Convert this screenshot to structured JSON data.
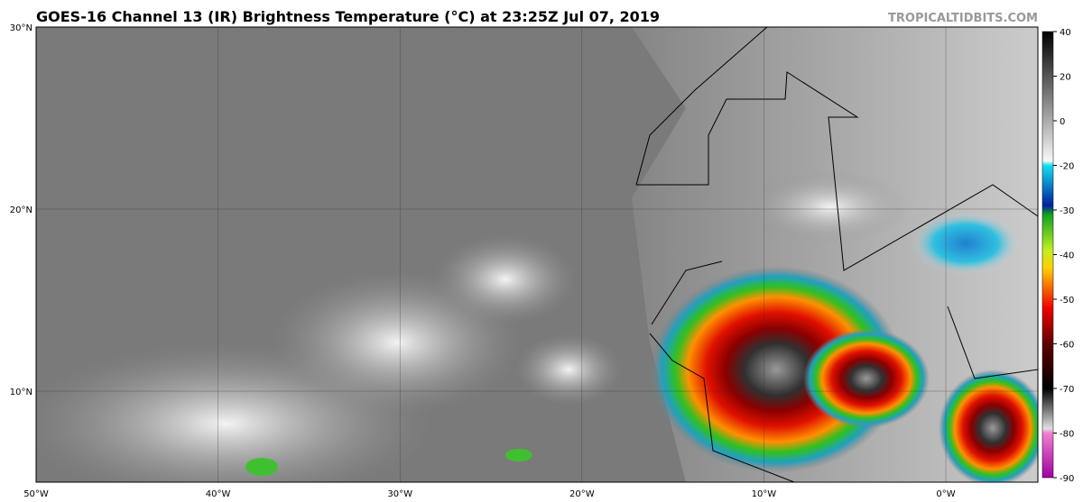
{
  "header": {
    "title": "GOES-16 Channel 13 (IR) Brightness Temperature (°C) at 23:25Z Jul 07, 2019",
    "site": "TROPICALTIDBITS.COM"
  },
  "map": {
    "lat_labels": [
      "30°N",
      "20°N",
      "10°N"
    ],
    "lon_labels": [
      "50°W",
      "40°W",
      "30°W",
      "20°W",
      "10°W",
      "0°W"
    ]
  },
  "colorbar": {
    "ticks": [
      40,
      20,
      0,
      -20,
      -30,
      -40,
      -50,
      -60,
      -70,
      -80,
      -90
    ]
  }
}
